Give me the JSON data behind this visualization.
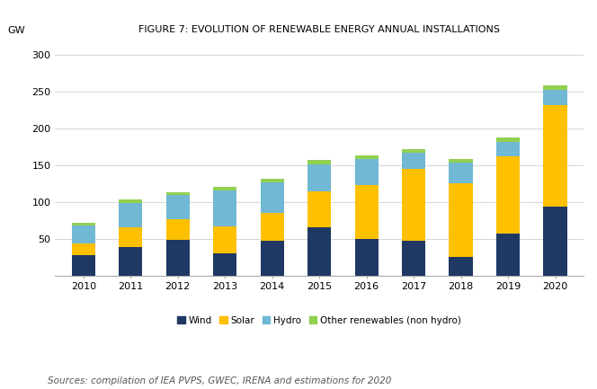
{
  "years": [
    2010,
    2011,
    2012,
    2013,
    2014,
    2015,
    2016,
    2017,
    2018,
    2019,
    2020
  ],
  "wind": [
    28,
    38,
    48,
    30,
    47,
    66,
    50,
    47,
    25,
    57,
    93
  ],
  "solar": [
    16,
    28,
    28,
    37,
    38,
    48,
    73,
    98,
    100,
    105,
    139
  ],
  "hydro": [
    24,
    33,
    33,
    48,
    42,
    37,
    35,
    22,
    28,
    20,
    20
  ],
  "other": [
    3,
    4,
    4,
    5,
    4,
    6,
    5,
    5,
    5,
    6,
    7
  ],
  "colors": {
    "wind": "#1F3864",
    "solar": "#FFC000",
    "hydro": "#70B8D4",
    "other": "#92D050"
  },
  "title": "FIGURE 7: EVOLUTION OF RENEWABLE ENERGY ANNUAL INSTALLATIONS",
  "ylabel": "GW",
  "ylim": [
    0,
    320
  ],
  "yticks": [
    0,
    50,
    100,
    150,
    200,
    250,
    300
  ],
  "legend_labels": [
    "Wind",
    "Solar",
    "Hydro",
    "Other renewables (non hydro)"
  ],
  "source_text": "Sources: compilation of IEA PVPS, GWEC, IRENA and estimations for 2020",
  "background_color": "#FFFFFF",
  "bar_width": 0.5
}
